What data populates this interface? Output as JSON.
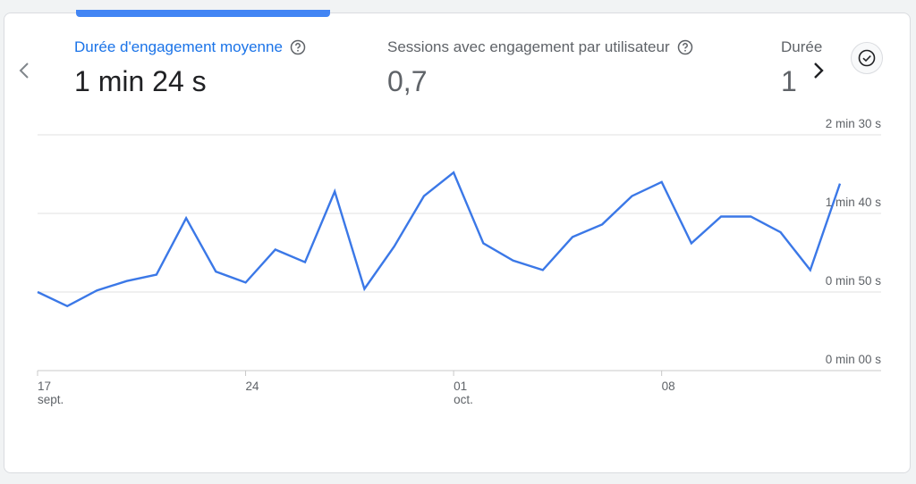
{
  "metrics": [
    {
      "label": "Durée d'engagement moyenne",
      "value": "1 min 24 s",
      "active": true
    },
    {
      "label": "Sessions avec engagement par utilisateur",
      "value": "0,7",
      "active": false
    },
    {
      "label": "Durée",
      "value": "1",
      "active": false
    }
  ],
  "colors": {
    "accent": "#4285f4",
    "active_label": "#1a73e8",
    "line": "#3b78e7",
    "grid": "#e0e0e0",
    "muted_text": "#5f6368"
  },
  "icons": {
    "help": "help-circle-icon",
    "prev": "chevron-left-icon",
    "next": "chevron-right-icon",
    "check": "check-circle-icon"
  },
  "chart_data": {
    "type": "line",
    "x_tick_labels": [
      {
        "index": 0,
        "line1": "17",
        "line2": "sept."
      },
      {
        "index": 7,
        "line1": "24",
        "line2": ""
      },
      {
        "index": 14,
        "line1": "01",
        "line2": "oct."
      },
      {
        "index": 21,
        "line1": "08",
        "line2": ""
      }
    ],
    "y_ticks": [
      {
        "value": 0,
        "label": "0 min 00 s"
      },
      {
        "value": 50,
        "label": "0 min 50 s"
      },
      {
        "value": 100,
        "label": "1 min 40 s"
      },
      {
        "value": 150,
        "label": "2 min 30 s"
      }
    ],
    "ylim": [
      0,
      150
    ],
    "grid": true,
    "series": [
      {
        "values": [
          50,
          41,
          51,
          57,
          61,
          97,
          63,
          56,
          77,
          69,
          114,
          52,
          79,
          111,
          126,
          81,
          70,
          64,
          85,
          93,
          111,
          120,
          81,
          98,
          98,
          88,
          64,
          119
        ]
      }
    ]
  }
}
